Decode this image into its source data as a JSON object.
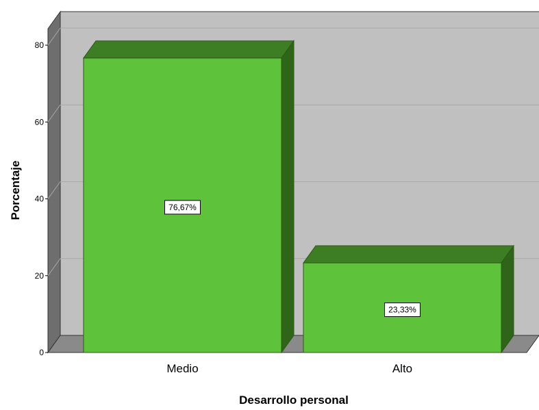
{
  "chart_data": {
    "type": "bar",
    "style": "3d",
    "categories": [
      "Medio",
      "Alto"
    ],
    "values": [
      76.67,
      23.33
    ],
    "data_labels": [
      "76,67%",
      "23,33%"
    ],
    "xlabel": "Desarrollo personal",
    "ylabel": "Porcentaje",
    "ylim": [
      0,
      80
    ],
    "yticks": [
      "0",
      "20",
      "40",
      "60",
      "80"
    ],
    "grid": true,
    "legend": "none",
    "colors": {
      "bar_front": "#5ec23a",
      "bar_top": "#3d7d23",
      "bar_side": "#2f6519",
      "plot_back": "#c0c0c0",
      "plot_floor": "#8a8a8a",
      "plot_wall": "#6e6e6e",
      "gridline": "#a8a8a8"
    }
  }
}
